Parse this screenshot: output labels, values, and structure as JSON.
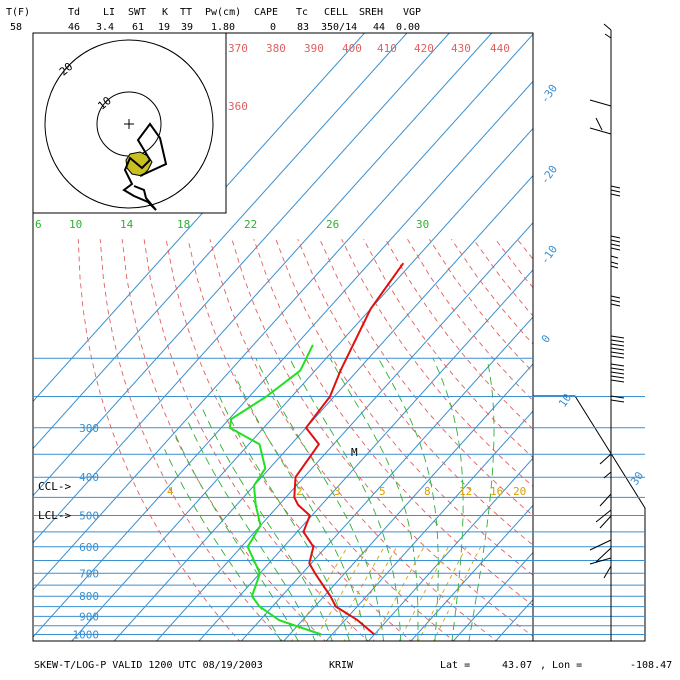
{
  "header": {
    "labels": [
      "T(F)",
      "Td",
      "LI",
      "SWT",
      "K",
      "TT",
      "Pw(cm)",
      "CAPE",
      "Tc",
      "CELL",
      "SREH",
      "VGP"
    ],
    "values": [
      "58",
      "46",
      "3.4",
      "61",
      "19",
      "39",
      "1.80",
      "0",
      "83",
      "350/14",
      "44",
      "0.00"
    ]
  },
  "footer": {
    "title": "SKEW-T/LOG-P VALID 1200 UTC 08/19/2003",
    "station": "KRIW",
    "lat_label": "Lat =",
    "lat_value": "43.07",
    "lon_label": ", Lon =",
    "lon_value": "-108.47"
  },
  "colors": {
    "temperature": "#e01010",
    "dewpoint": "#20e020",
    "isotherm": "#3a8fd0",
    "dry_adiabat": "#e06060",
    "moist_adiabat": "#30b030",
    "mixing_ratio": "#d8a000",
    "hodograph_fill": "#c8c020"
  },
  "chart_data": {
    "type": "line",
    "title": "SKEW-T/LOG-P VALID 1200 UTC 08/19/2003",
    "pressure_levels": [
      "300",
      "400",
      "500",
      "600",
      "700",
      "800",
      "900",
      "1000"
    ],
    "isotherm_labels": [
      "-30",
      "-20",
      "-10",
      "0",
      "10",
      "30"
    ],
    "theta_labels": [
      "370",
      "380",
      "390",
      "400",
      "410",
      "420",
      "430",
      "440",
      "360"
    ],
    "theta_e_labels": [
      "6",
      "10",
      "14",
      "18",
      "22",
      "26",
      "30"
    ],
    "mixing_ratio_labels": [
      "4",
      "5",
      "8",
      "12",
      "16",
      "20",
      "2",
      "3"
    ],
    "level_markers": [
      "CCL->",
      "LCL->"
    ],
    "marker_m": "M",
    "hodograph_ring_labels": [
      "10",
      "20"
    ],
    "series": [
      {
        "name": "Temperature",
        "pressure": [
          1000,
          920,
          850,
          800,
          700,
          660,
          600,
          550,
          500,
          470,
          450,
          400,
          330,
          300,
          250,
          215,
          150,
          115
        ],
        "temperature": [
          10.0,
          3.0,
          -5.0,
          -8.5,
          -17.0,
          -20.5,
          -23.0,
          -28.5,
          -30.5,
          -35.5,
          -38.0,
          -42.0,
          -43.5,
          -50.0,
          -51.0,
          -54.0,
          -60.0,
          -62.0
        ]
      },
      {
        "name": "Dewpoint",
        "pressure": [
          1000,
          920,
          850,
          800,
          700,
          600,
          530,
          470,
          420,
          380,
          330,
          300,
          285,
          250,
          215,
          185
        ],
        "temperature": [
          -2.5,
          -15.5,
          -23.0,
          -27.0,
          -30.0,
          -38.5,
          -40.0,
          -45.5,
          -50.0,
          -51.0,
          -57.5,
          -68.0,
          -69.5,
          -66.0,
          -63.5,
          -66.0
        ]
      }
    ],
    "x_range": [
      -40,
      40
    ],
    "p_range": [
      1050,
      100
    ],
    "y_scale": "log"
  }
}
